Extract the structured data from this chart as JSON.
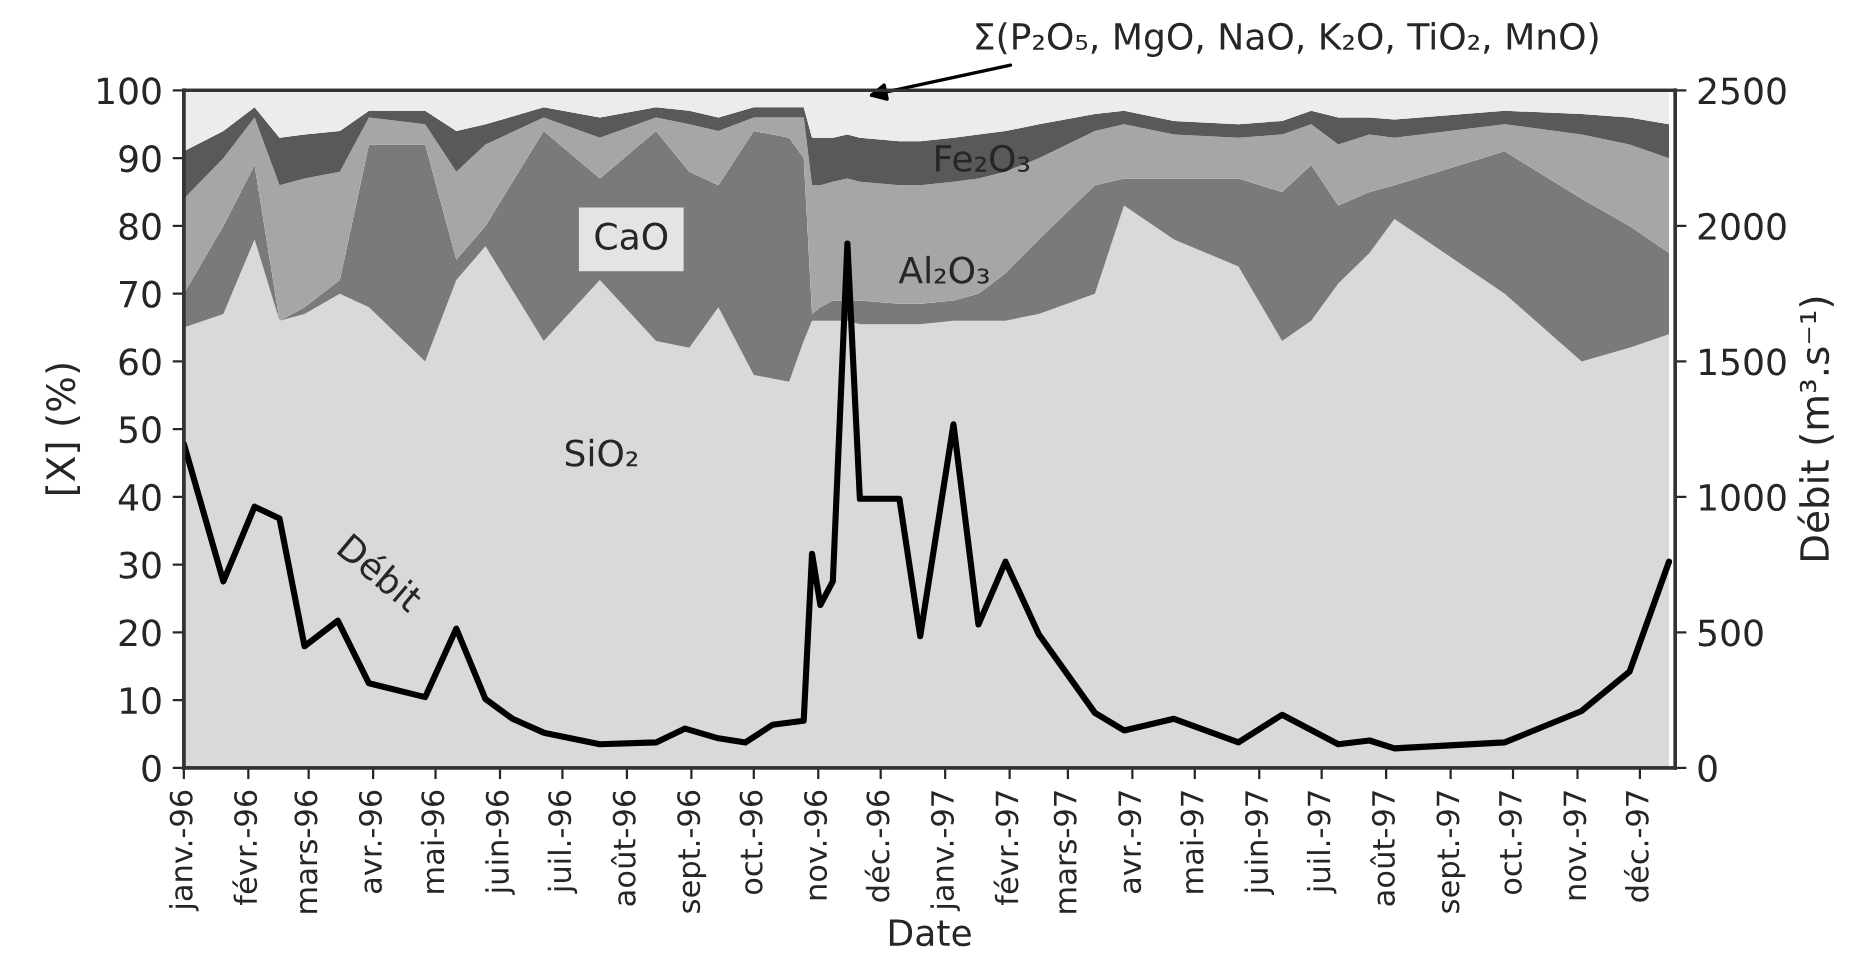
{
  "chart_data": {
    "type": "area",
    "stacked": true,
    "xlabel": "Date",
    "ylabel": "[X] (%)",
    "y2label": "Débit (m³.s⁻¹)",
    "x": [
      "1996-01-01",
      "1996-01-20",
      "1996-02-04",
      "1996-02-16",
      "1996-02-28",
      "1996-03-16",
      "1996-03-30",
      "1996-04-26",
      "1996-05-11",
      "1996-05-25",
      "1996-06-22",
      "1996-07-19",
      "1996-08-15",
      "1996-08-31",
      "1996-09-14",
      "1996-10-01",
      "1996-10-18",
      "1996-10-25",
      "1996-10-29",
      "1996-11-02",
      "1996-11-08",
      "1996-11-15",
      "1996-11-21",
      "1996-12-10",
      "1996-12-20",
      "1997-01-05",
      "1997-01-17",
      "1997-01-30",
      "1997-02-15",
      "1997-03-14",
      "1997-03-28",
      "1997-04-21",
      "1997-05-22",
      "1997-06-12",
      "1997-06-26",
      "1997-07-09",
      "1997-07-24",
      "1997-08-05",
      "1997-09-27",
      "1997-11-03",
      "1997-11-26",
      "1997-12-15"
    ],
    "series": [
      {
        "name": "SiO₂",
        "color": "#d9d9d9",
        "values": [
          65,
          67,
          78,
          66,
          67,
          70,
          68,
          60,
          72,
          77,
          63,
          72,
          63,
          62,
          68,
          58,
          57,
          63,
          66,
          66,
          66,
          66,
          65.5,
          65.5,
          65.5,
          66,
          66,
          66,
          67,
          70,
          83,
          78,
          74,
          63,
          66,
          71.5,
          76,
          81,
          70,
          60,
          62,
          64
        ]
      },
      {
        "name": "CaO",
        "color": "#7a7a7a",
        "values": [
          5,
          13,
          11,
          0,
          1,
          2,
          24,
          32,
          3,
          3,
          31,
          15,
          31,
          26,
          18,
          36,
          36,
          27,
          1,
          2,
          3,
          3,
          3.5,
          3,
          3,
          3,
          4,
          7,
          11,
          16,
          4,
          9,
          13,
          22,
          23,
          11.5,
          9,
          5,
          21,
          24,
          18,
          12
        ]
      },
      {
        "name": "Al₂O₃",
        "color": "#a6a6a6",
        "values": [
          14,
          10,
          7,
          20,
          19,
          16,
          4,
          3,
          13,
          12,
          2,
          6,
          2,
          7,
          8,
          2,
          3,
          6,
          19,
          18,
          17.5,
          18,
          17.5,
          17.5,
          17.5,
          17.5,
          17,
          15,
          12,
          8,
          8,
          6.5,
          6,
          8.5,
          6,
          9,
          8.5,
          7,
          4,
          9.5,
          12,
          14
        ]
      },
      {
        "name": "Fe₂O₃",
        "color": "#595959",
        "values": [
          7,
          4,
          1.5,
          7,
          6.5,
          6,
          1,
          2,
          6,
          3,
          1.5,
          3,
          1.5,
          2,
          2,
          1.5,
          1.5,
          1.5,
          7,
          7,
          6.5,
          6.5,
          6.5,
          6.5,
          6.5,
          6.5,
          6.5,
          6,
          5,
          2.5,
          2,
          2,
          2,
          2,
          2,
          4,
          2.5,
          2.7,
          2,
          3,
          4,
          5
        ]
      },
      {
        "name": "Σ(P₂O₅, MgO, NaO, K₂O, TiO₂, MnO)",
        "color": "#ececec",
        "values": [
          9,
          6,
          2.5,
          7,
          6.5,
          6,
          3,
          3,
          6,
          5,
          2.5,
          4,
          2.5,
          3,
          4,
          2.5,
          2.5,
          2.5,
          7,
          7,
          7,
          6.5,
          7,
          7.5,
          7.5,
          7,
          6.5,
          6,
          5,
          3.5,
          3,
          4.5,
          5,
          4.5,
          3,
          4,
          4,
          4.3,
          3,
          3.5,
          4,
          5
        ]
      },
      {
        "name": "Débit",
        "type": "line",
        "axis": "y2",
        "color": "#000000",
        "x": [
          "1996-01-01",
          "1996-01-20",
          "1996-02-04",
          "1996-02-16",
          "1996-02-28",
          "1996-03-15",
          "1996-03-30",
          "1996-04-26",
          "1996-05-11",
          "1996-05-25",
          "1996-06-07",
          "1996-06-22",
          "1996-07-19",
          "1996-08-15",
          "1996-08-29",
          "1996-09-14",
          "1996-09-27",
          "1996-10-10",
          "1996-10-25",
          "1996-10-29",
          "1996-11-02",
          "1996-11-08",
          "1996-11-15",
          "1996-11-21",
          "1996-12-10",
          "1996-12-20",
          "1997-01-05",
          "1997-01-17",
          "1997-01-30",
          "1997-02-15",
          "1997-03-14",
          "1997-03-28",
          "1997-04-21",
          "1997-05-22",
          "1997-06-12",
          "1997-07-09",
          "1997-07-24",
          "1997-08-05",
          "1997-09-27",
          "1997-11-03",
          "1997-11-26",
          "1997-12-15"
        ],
        "values": [
          1196,
          688,
          964,
          920,
          449,
          543,
          312,
          261,
          514,
          254,
          181,
          130,
          87,
          94,
          145,
          109,
          94,
          159,
          174,
          790,
          601,
          688,
          1935,
          993,
          993,
          486,
          1268,
          529,
          761,
          493,
          203,
          138,
          181,
          94,
          196,
          87,
          101,
          72,
          94,
          210,
          355,
          761
        ]
      }
    ],
    "ylim": [
      0,
      100
    ],
    "yticks": [
      0,
      10,
      20,
      30,
      40,
      50,
      60,
      70,
      80,
      90,
      100
    ],
    "y2lim": [
      0,
      2500
    ],
    "y2ticks": [
      0,
      500,
      1000,
      1500,
      2000,
      2500
    ],
    "xlim": [
      "1996-01-01",
      "1997-12-18"
    ],
    "xticks": [
      {
        "value": "1996-01-01",
        "label": "janv.-96"
      },
      {
        "value": "1996-02-01",
        "label": "févr.-96"
      },
      {
        "value": "1996-03-01",
        "label": "mars-96"
      },
      {
        "value": "1996-04-01",
        "label": "avr.-96"
      },
      {
        "value": "1996-05-01",
        "label": "mai-96"
      },
      {
        "value": "1996-06-01",
        "label": "juin-96"
      },
      {
        "value": "1996-07-01",
        "label": "juil.-96"
      },
      {
        "value": "1996-08-01",
        "label": "août-96"
      },
      {
        "value": "1996-09-01",
        "label": "sept.-96"
      },
      {
        "value": "1996-10-01",
        "label": "oct.-96"
      },
      {
        "value": "1996-11-01",
        "label": "nov.-96"
      },
      {
        "value": "1996-12-01",
        "label": "déc.-96"
      },
      {
        "value": "1997-01-01",
        "label": "janv.-97"
      },
      {
        "value": "1997-02-01",
        "label": "févr.-97"
      },
      {
        "value": "1997-03-01",
        "label": "mars-97"
      },
      {
        "value": "1997-04-01",
        "label": "avr.-97"
      },
      {
        "value": "1997-05-01",
        "label": "mai-97"
      },
      {
        "value": "1997-06-01",
        "label": "juin-97"
      },
      {
        "value": "1997-07-01",
        "label": "juil.-97"
      },
      {
        "value": "1997-08-01",
        "label": "août-97"
      },
      {
        "value": "1997-09-01",
        "label": "sept.-97"
      },
      {
        "value": "1997-10-01",
        "label": "oct.-97"
      },
      {
        "value": "1997-11-01",
        "label": "nov.-97"
      },
      {
        "value": "1997-12-01",
        "label": "déc.-97"
      }
    ],
    "grid": false,
    "legend": false
  }
}
